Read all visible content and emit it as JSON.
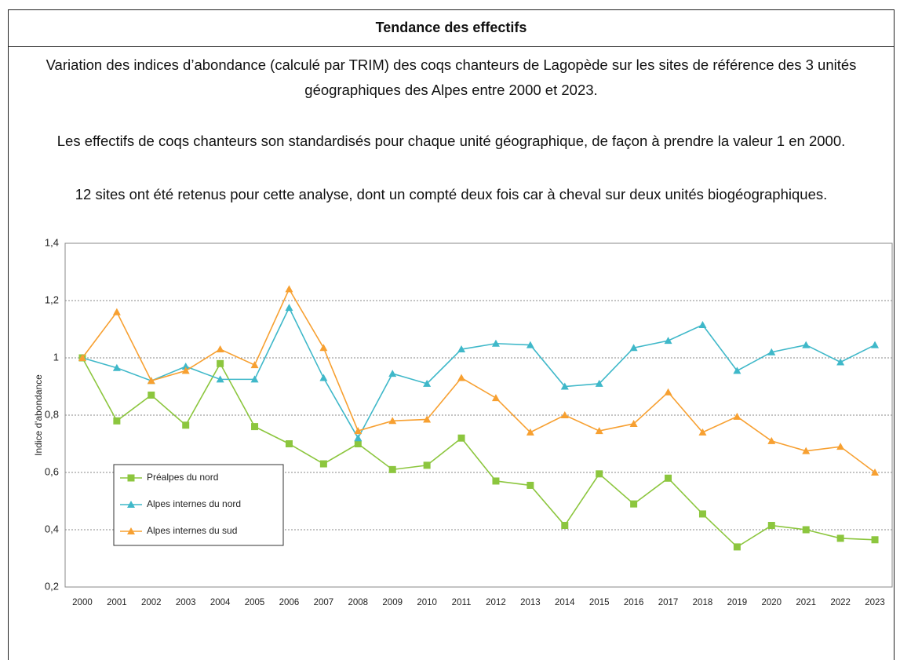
{
  "header": {
    "title": "Tendance des effectifs"
  },
  "paragraphs": [
    "Variation des indices d’abondance (calculé par TRIM) des coqs chanteurs de Lagopède sur les sites de référence des 3 unités géographiques des Alpes entre 2000 et 2023.",
    "Les effectifs de coqs chanteurs son standardisés pour chaque unité géographique, de façon à prendre la valeur 1 en 2000.",
    "12 sites ont été retenus pour cette analyse, dont un compté deux fois car à cheval sur deux unités biogéographiques."
  ],
  "chart_data": {
    "type": "line",
    "y_label": "Indice d'abondance",
    "categories": [
      "2000",
      "2001",
      "2002",
      "2003",
      "2004",
      "2005",
      "2006",
      "2007",
      "2008",
      "2009",
      "2010",
      "2011",
      "2012",
      "2013",
      "2014",
      "2015",
      "2016",
      "2017",
      "2018",
      "2019",
      "2020",
      "2021",
      "2022",
      "2023"
    ],
    "series": [
      {
        "name": "Préalpes du nord",
        "color": "#8cc63e",
        "marker": "square",
        "values": [
          1.0,
          0.78,
          0.87,
          0.765,
          0.98,
          0.76,
          0.7,
          0.63,
          0.7,
          0.61,
          0.625,
          0.72,
          0.57,
          0.555,
          0.415,
          0.595,
          0.49,
          0.58,
          0.455,
          0.34,
          0.415,
          0.4,
          0.37,
          0.365
        ]
      },
      {
        "name": "Alpes internes du nord",
        "color": "#3fb8c9",
        "marker": "triangle",
        "values": [
          1.0,
          0.965,
          0.92,
          0.97,
          0.925,
          0.925,
          1.175,
          0.93,
          0.72,
          0.945,
          0.91,
          1.03,
          1.05,
          1.045,
          0.9,
          0.91,
          1.035,
          1.06,
          1.115,
          0.955,
          1.02,
          1.045,
          0.985,
          1.045
        ]
      },
      {
        "name": "Alpes internes du sud",
        "color": "#f7a031",
        "marker": "triangle",
        "values": [
          1.0,
          1.16,
          0.92,
          0.955,
          1.03,
          0.975,
          1.24,
          1.035,
          0.745,
          0.78,
          0.785,
          0.93,
          0.86,
          0.74,
          0.8,
          0.745,
          0.77,
          0.88,
          0.74,
          0.795,
          0.71,
          0.675,
          0.69,
          0.6
        ]
      }
    ],
    "ylim": [
      0.2,
      1.4
    ],
    "yticks": [
      {
        "value": 0.2,
        "label": "0,2"
      },
      {
        "value": 0.4,
        "label": "0,4"
      },
      {
        "value": 0.6,
        "label": "0,6"
      },
      {
        "value": 0.8,
        "label": "0,8"
      },
      1,
      {
        "value": 1.2,
        "label": "1,2"
      },
      {
        "value": 1.4,
        "label": "1,4"
      }
    ],
    "grid": true,
    "legend": "lower-left"
  }
}
